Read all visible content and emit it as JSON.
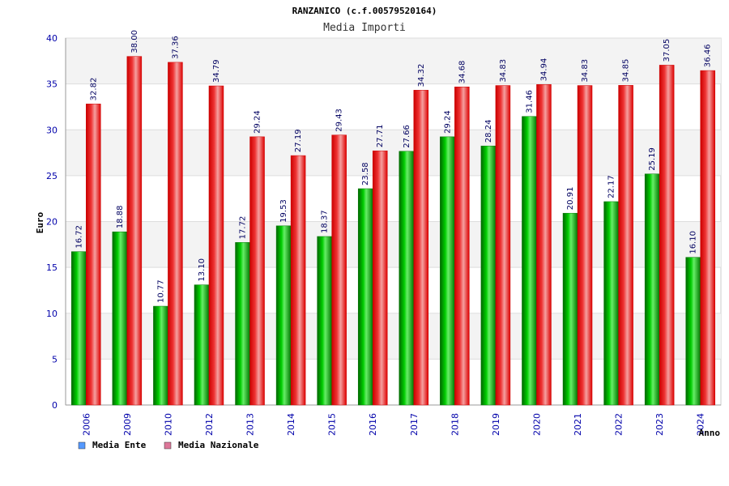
{
  "chart_data": {
    "type": "bar",
    "title": "RANZANICO (c.f.00579520164)",
    "subtitle": "Media Importi",
    "ylabel": "Euro",
    "xlabel": "Anno",
    "ylim": [
      0,
      40
    ],
    "yticks": [
      0,
      5,
      10,
      15,
      20,
      25,
      30,
      35,
      40
    ],
    "categories": [
      "2006",
      "2009",
      "2010",
      "2012",
      "2013",
      "2014",
      "2015",
      "2016",
      "2017",
      "2018",
      "2019",
      "2020",
      "2021",
      "2022",
      "2023",
      "2024"
    ],
    "series": [
      {
        "name": "Media Ente",
        "color": "#00aa00",
        "legend_color": "#5599ff",
        "values": [
          16.72,
          18.88,
          10.77,
          13.1,
          17.72,
          19.53,
          18.37,
          23.58,
          27.66,
          29.24,
          28.24,
          31.46,
          20.91,
          22.17,
          25.19,
          16.1
        ],
        "labels": [
          "16.72",
          "18.88",
          "10.77",
          "13.10",
          "17.72",
          "19.53",
          "18.37",
          "23.58",
          "27.66",
          "29.24",
          "28.24",
          "31.46",
          "20.91",
          "22.17",
          "25.19",
          "16.10"
        ]
      },
      {
        "name": "Media Nazionale",
        "color": "#ee1111",
        "legend_color": "#dd7799",
        "values": [
          32.82,
          38.0,
          37.36,
          34.79,
          29.24,
          27.19,
          29.43,
          27.71,
          34.32,
          34.68,
          34.83,
          34.94,
          34.83,
          34.85,
          37.05,
          36.46
        ],
        "labels": [
          "32.82",
          "38.00",
          "37.36",
          "34.79",
          "29.24",
          "27.19",
          "29.43",
          "27.71",
          "34.32",
          "34.68",
          "34.83",
          "34.94",
          "34.83",
          "34.85",
          "37.05",
          "36.46"
        ]
      }
    ],
    "grid": true,
    "legend_position": "bottom-left"
  }
}
